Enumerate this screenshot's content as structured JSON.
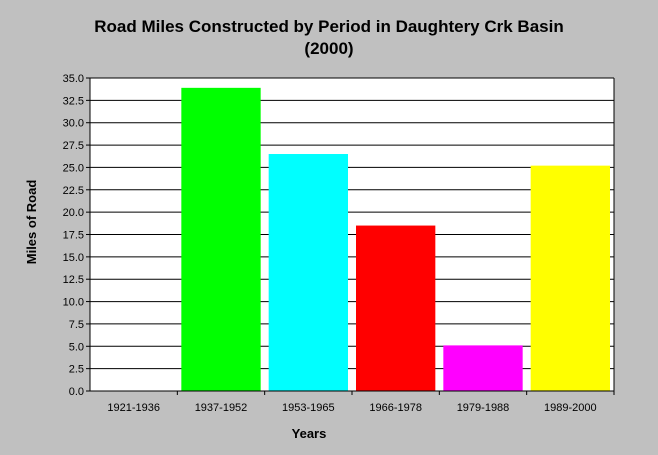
{
  "chart_data": {
    "type": "bar",
    "title": "Road Miles Constructed by Period in Daughtery Crk Basin",
    "subtitle": "(2000)",
    "xlabel": "Years",
    "ylabel": "Miles of Road",
    "categories": [
      "1921-1936",
      "1937-1952",
      "1953-1965",
      "1966-1978",
      "1979-1988",
      "1989-2000"
    ],
    "values": [
      0,
      33.9,
      26.5,
      18.5,
      5.1,
      25.2
    ],
    "colors": [
      "#c0c0c0",
      "#00ff00",
      "#00ffff",
      "#ff0000",
      "#ff00ff",
      "#ffff00"
    ],
    "ylim": [
      0,
      35
    ],
    "yticks": [
      "0.0",
      "2.5",
      "5.0",
      "7.5",
      "10.0",
      "12.5",
      "15.0",
      "17.5",
      "20.0",
      "22.5",
      "25.0",
      "27.5",
      "30.0",
      "32.5",
      "35.0"
    ],
    "grid": "horizontal",
    "background": "#c0c0c0",
    "plot_background": "#ffffff"
  }
}
